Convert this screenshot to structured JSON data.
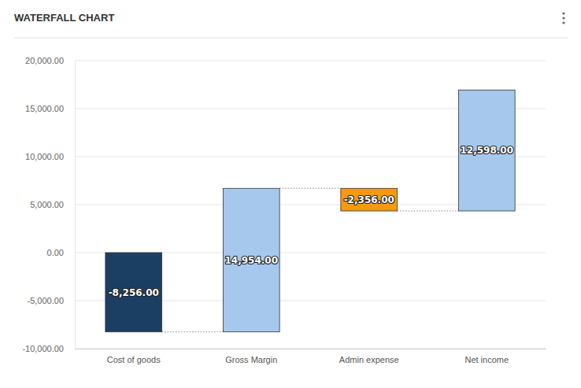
{
  "chart_data": {
    "type": "waterfall",
    "title": "WATERFALL CHART",
    "categories": [
      "Cost of goods",
      "Gross Margin",
      "Admin expense",
      "Net income"
    ],
    "values": [
      -8256,
      14954,
      -2356,
      12598
    ],
    "value_labels": [
      "-8,256.00",
      "14,954.00",
      "-2,356.00",
      "12,598.00"
    ],
    "colors": [
      "#1b3f63",
      "#a5c8ec",
      "#f7990c",
      "#a5c8ec"
    ],
    "ylim": [
      -10000,
      20000
    ],
    "yticks": [
      {
        "value": -10000,
        "label": "-10,000.00"
      },
      {
        "value": -5000,
        "label": "-5,000.00"
      },
      {
        "value": 0,
        "label": "0.00"
      },
      {
        "value": 5000,
        "label": "5,000.00"
      },
      {
        "value": 10000,
        "label": "10,000.00"
      },
      {
        "value": 15000,
        "label": "15,000.00"
      },
      {
        "value": 20000,
        "label": "20,000.00"
      }
    ],
    "grid": true,
    "data_labels": true
  }
}
